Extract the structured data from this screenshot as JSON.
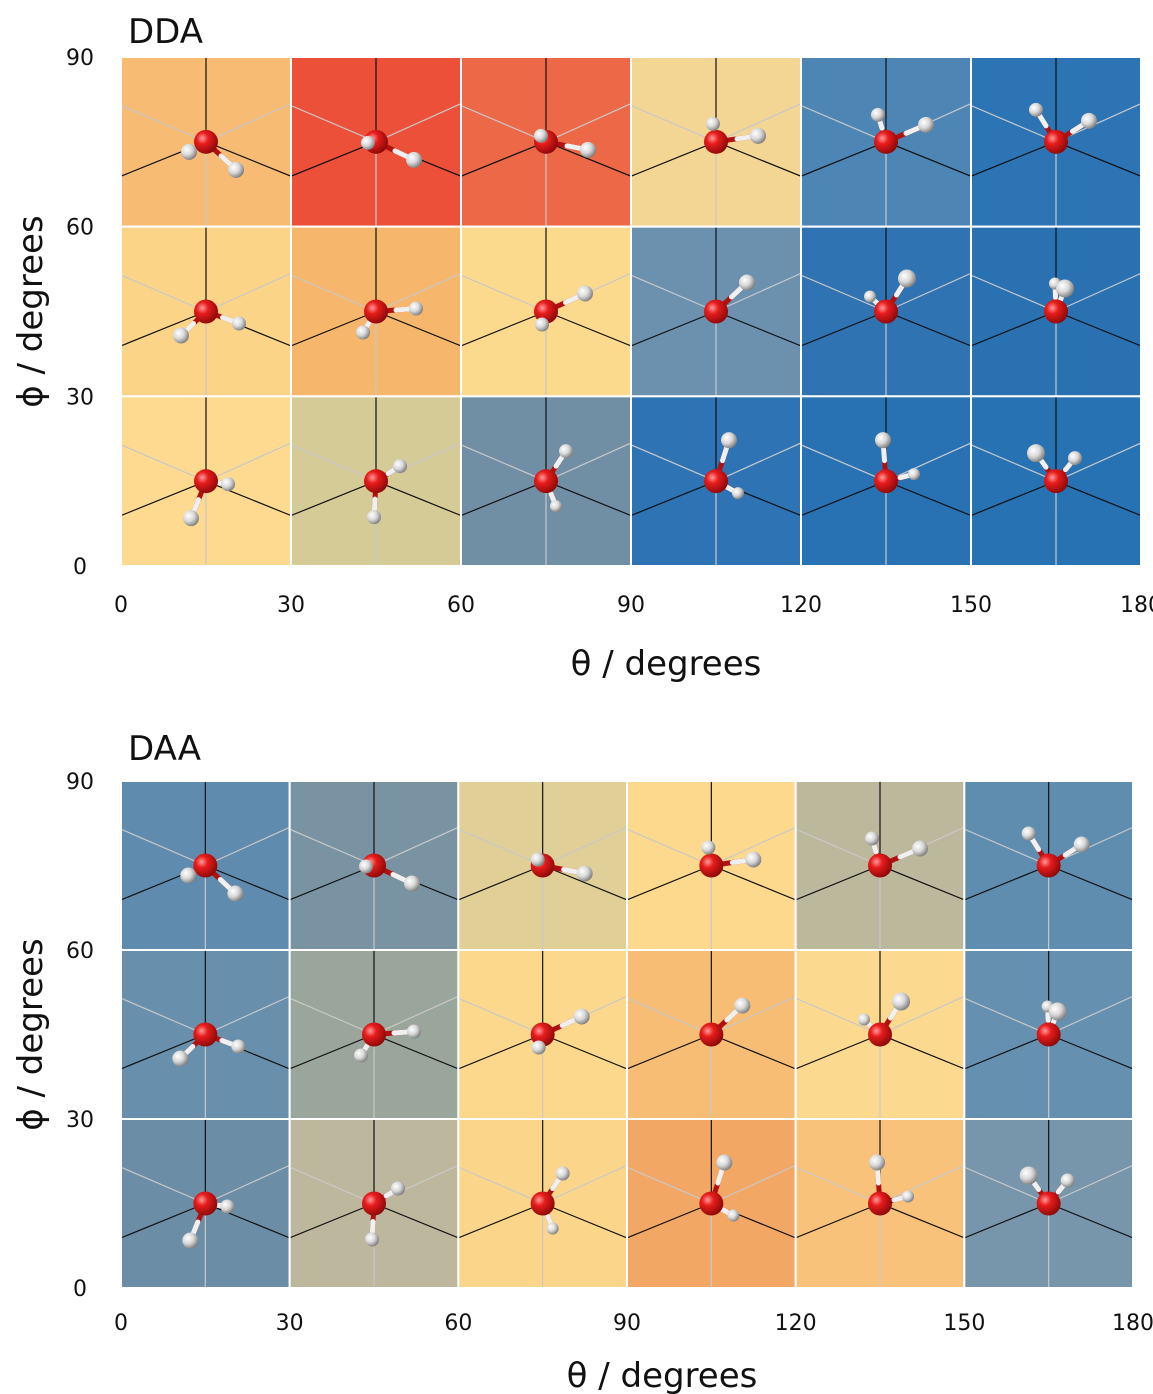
{
  "chart_data": [
    {
      "type": "heatmap",
      "title": "DDA",
      "xlabel": "θ / degrees",
      "ylabel": "ϕ / degrees",
      "xlim": [
        0,
        180
      ],
      "ylim": [
        0,
        90
      ],
      "xticks": [
        "0",
        "30",
        "60",
        "90",
        "120",
        "150",
        "180"
      ],
      "yticks": [
        "0",
        "30",
        "60",
        "90"
      ],
      "cell_width_deg": 30,
      "cell_height_deg": 30,
      "cells": [
        {
          "theta": 15,
          "phi": 75,
          "color": "#f7bb74"
        },
        {
          "theta": 45,
          "phi": 75,
          "color": "#ec5038"
        },
        {
          "theta": 75,
          "phi": 75,
          "color": "#ec6846"
        },
        {
          "theta": 105,
          "phi": 75,
          "color": "#f3d693"
        },
        {
          "theta": 135,
          "phi": 75,
          "color": "#4d86b4"
        },
        {
          "theta": 165,
          "phi": 75,
          "color": "#2c74b4"
        },
        {
          "theta": 15,
          "phi": 45,
          "color": "#fbd487"
        },
        {
          "theta": 45,
          "phi": 45,
          "color": "#f6b66c"
        },
        {
          "theta": 75,
          "phi": 45,
          "color": "#fbd98d"
        },
        {
          "theta": 105,
          "phi": 45,
          "color": "#6b91af"
        },
        {
          "theta": 135,
          "phi": 45,
          "color": "#2f73b2"
        },
        {
          "theta": 165,
          "phi": 45,
          "color": "#2a71b2"
        },
        {
          "theta": 15,
          "phi": 15,
          "color": "#fdda90"
        },
        {
          "theta": 45,
          "phi": 15,
          "color": "#d5cb96"
        },
        {
          "theta": 75,
          "phi": 15,
          "color": "#708fa5"
        },
        {
          "theta": 105,
          "phi": 15,
          "color": "#2e74b5"
        },
        {
          "theta": 135,
          "phi": 15,
          "color": "#2872b3"
        },
        {
          "theta": 165,
          "phi": 15,
          "color": "#2672b3"
        }
      ]
    },
    {
      "type": "heatmap",
      "title": "DAA",
      "xlabel": "θ / degrees",
      "ylabel": "ϕ / degrees",
      "xlim": [
        0,
        180
      ],
      "ylim": [
        0,
        90
      ],
      "xticks": [
        "0",
        "30",
        "60",
        "90",
        "120",
        "150",
        "180"
      ],
      "yticks": [
        "0",
        "30",
        "60",
        "90"
      ],
      "cell_width_deg": 30,
      "cell_height_deg": 30,
      "cells": [
        {
          "theta": 15,
          "phi": 75,
          "color": "#5f8cae"
        },
        {
          "theta": 45,
          "phi": 75,
          "color": "#7a93a2"
        },
        {
          "theta": 75,
          "phi": 75,
          "color": "#e0cf96"
        },
        {
          "theta": 105,
          "phi": 75,
          "color": "#fcd98d"
        },
        {
          "theta": 135,
          "phi": 75,
          "color": "#bcb89c"
        },
        {
          "theta": 165,
          "phi": 75,
          "color": "#5f8db0"
        },
        {
          "theta": 15,
          "phi": 45,
          "color": "#6890ac"
        },
        {
          "theta": 45,
          "phi": 45,
          "color": "#9aa69c"
        },
        {
          "theta": 75,
          "phi": 45,
          "color": "#fcd88d"
        },
        {
          "theta": 105,
          "phi": 45,
          "color": "#f7bd74"
        },
        {
          "theta": 135,
          "phi": 45,
          "color": "#fbda90"
        },
        {
          "theta": 165,
          "phi": 45,
          "color": "#6590b0"
        },
        {
          "theta": 15,
          "phi": 15,
          "color": "#6c8da6"
        },
        {
          "theta": 45,
          "phi": 15,
          "color": "#bcb79d"
        },
        {
          "theta": 75,
          "phi": 15,
          "color": "#fbd68a"
        },
        {
          "theta": 105,
          "phi": 15,
          "color": "#f2a764"
        },
        {
          "theta": 135,
          "phi": 15,
          "color": "#f8c27a"
        },
        {
          "theta": 165,
          "phi": 15,
          "color": "#7796ab"
        }
      ]
    }
  ],
  "colors": {
    "oxygen": "#e01818",
    "hydrogen": "#dcdcdc",
    "grid_border": "#ffffff",
    "axis_line_dark": "#111111",
    "axis_line_light": "#c8c8c8"
  }
}
